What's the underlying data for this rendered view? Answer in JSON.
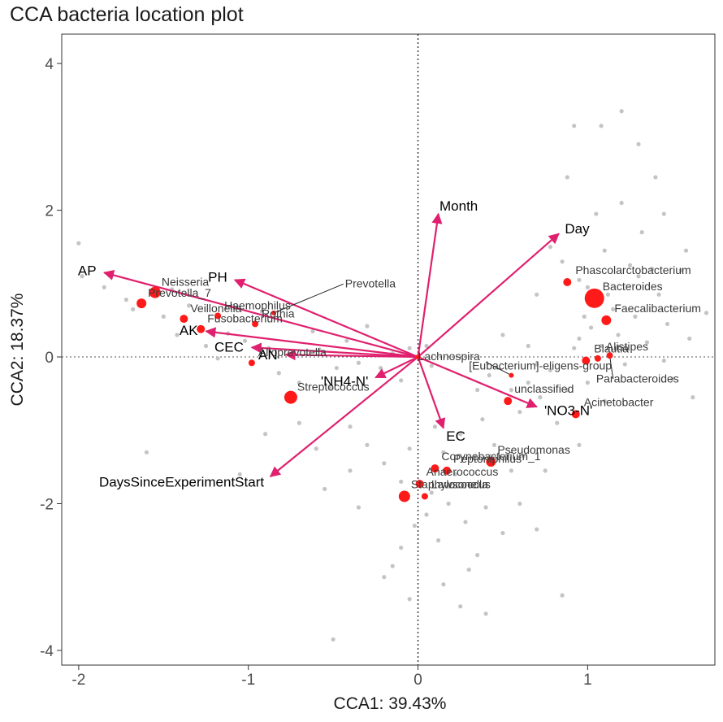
{
  "title": "CCA bacteria location plot",
  "chart_data": {
    "type": "scatter",
    "title": "CCA bacteria location plot",
    "xlabel": "CCA1: 39.43%",
    "ylabel": "CCA2: 18.37%",
    "xlim": [
      -2.1,
      1.75
    ],
    "ylim": [
      -4.2,
      4.4
    ],
    "x_ticks": [
      -2,
      -1,
      0,
      1
    ],
    "y_ticks": [
      -4,
      -2,
      0,
      2,
      4
    ],
    "grid": false,
    "reference_lines": "dotted lines at x=0 and y=0",
    "colors": {
      "arrows": "#e0206e",
      "highlighted": "#ff1a1a",
      "background_points": "#c4c4c4",
      "leaders": "#222222"
    },
    "arrows": [
      {
        "label": "AP",
        "x": -1.85,
        "y": 1.15
      },
      {
        "label": "PH",
        "x": -1.08,
        "y": 1.05
      },
      {
        "label": "AK",
        "x": -1.25,
        "y": 0.35
      },
      {
        "label": "CEC",
        "x": -0.98,
        "y": 0.13
      },
      {
        "label": "AN",
        "x": -0.78,
        "y": 0.03
      },
      {
        "label": "'NH4-N'",
        "x": -0.25,
        "y": -0.28
      },
      {
        "label": "DaysSinceExperimentStart",
        "x": -0.87,
        "y": -1.63
      },
      {
        "label": "Month",
        "x": 0.12,
        "y": 1.95
      },
      {
        "label": "Day",
        "x": 0.83,
        "y": 1.68
      },
      {
        "label": "EC",
        "x": 0.15,
        "y": -0.97
      },
      {
        "label": "'NO3-N'",
        "x": 0.7,
        "y": -0.68
      }
    ],
    "taxa": [
      {
        "label": "Neisseria",
        "x": -1.55,
        "y": 0.88,
        "size": 7
      },
      {
        "label": "Prevotella_7",
        "x": -1.63,
        "y": 0.73,
        "size": 6
      },
      {
        "label": "Veillonella",
        "x": -1.38,
        "y": 0.52,
        "size": 5
      },
      {
        "label": "Haemophilus",
        "x": -1.18,
        "y": 0.56,
        "size": 4
      },
      {
        "label": "Prevotella",
        "x": -0.85,
        "y": 0.6,
        "size": 3
      },
      {
        "label": "Rothia",
        "x": -0.96,
        "y": 0.45,
        "size": 4
      },
      {
        "label": "Fusobacterium",
        "x": -1.28,
        "y": 0.38,
        "size": 5
      },
      {
        "label": "Alloprevotella",
        "x": -0.98,
        "y": -0.08,
        "size": 4
      },
      {
        "label": "Streptococcus",
        "x": -0.75,
        "y": -0.55,
        "size": 8
      },
      {
        "label": "Phascolarctobacterium",
        "x": 0.88,
        "y": 1.02,
        "size": 5
      },
      {
        "label": "Bacteroides",
        "x": 1.04,
        "y": 0.8,
        "size": 12
      },
      {
        "label": "Faecalibacterium",
        "x": 1.11,
        "y": 0.5,
        "size": 6
      },
      {
        "label": "Lachnospira",
        "x": 0.0,
        "y": 0.0,
        "size": 3
      },
      {
        "label": "Blautia",
        "x": 0.99,
        "y": -0.05,
        "size": 5
      },
      {
        "label": "Alistipes",
        "x": 1.06,
        "y": -0.02,
        "size": 4
      },
      {
        "label": "[Eubacterium]-eligens-group",
        "x": 0.55,
        "y": -0.25,
        "size": 3
      },
      {
        "label": "Parabacteroides",
        "x": 1.13,
        "y": 0.02,
        "size": 4
      },
      {
        "label": "unclassified",
        "x": 0.53,
        "y": -0.6,
        "size": 5
      },
      {
        "label": "Acinetobacter",
        "x": 0.93,
        "y": -0.78,
        "size": 5
      },
      {
        "label": "Pseudomonas",
        "x": 0.43,
        "y": -1.43,
        "size": 6
      },
      {
        "label": "Corynebacterium_1",
        "x": 0.1,
        "y": -1.52,
        "size": 5
      },
      {
        "label": "Peptoniphilus",
        "x": 0.17,
        "y": -1.55,
        "size": 5
      },
      {
        "label": "Anaerococcus",
        "x": 0.01,
        "y": -1.73,
        "size": 5
      },
      {
        "label": "Staphylococcus",
        "x": -0.08,
        "y": -1.9,
        "size": 7
      },
      {
        "label": "Lawsonella",
        "x": 0.04,
        "y": -1.9,
        "size": 4
      }
    ],
    "background_points": [
      [
        -2.0,
        1.55
      ],
      [
        -1.98,
        1.1
      ],
      [
        -1.85,
        0.95
      ],
      [
        -1.72,
        0.78
      ],
      [
        -1.68,
        0.65
      ],
      [
        -1.45,
        0.92
      ],
      [
        -1.5,
        0.55
      ],
      [
        -1.42,
        0.3
      ],
      [
        -1.35,
        0.7
      ],
      [
        -1.25,
        0.15
      ],
      [
        -1.18,
        -0.02
      ],
      [
        -1.12,
        0.32
      ],
      [
        -1.02,
        0.22
      ],
      [
        -0.92,
        0.62
      ],
      [
        -0.88,
        0.12
      ],
      [
        -0.82,
        -0.22
      ],
      [
        -0.7,
        -0.35
      ],
      [
        -0.62,
        0.35
      ],
      [
        -0.58,
        0.1
      ],
      [
        -0.52,
        -0.42
      ],
      [
        -0.48,
        -0.15
      ],
      [
        -0.42,
        0.22
      ],
      [
        -0.35,
        -0.08
      ],
      [
        -0.3,
        0.42
      ],
      [
        -0.22,
        -0.15
      ],
      [
        -0.15,
        0.05
      ],
      [
        -0.1,
        -0.32
      ],
      [
        -0.05,
        0.12
      ],
      [
        0.05,
        0.15
      ],
      [
        0.08,
        -0.12
      ],
      [
        -1.6,
        -1.3
      ],
      [
        -1.05,
        -1.6
      ],
      [
        -0.9,
        -1.05
      ],
      [
        -0.7,
        -0.9
      ],
      [
        -0.6,
        -1.25
      ],
      [
        -0.55,
        -1.8
      ],
      [
        -0.4,
        -1.55
      ],
      [
        -0.4,
        -0.95
      ],
      [
        -0.3,
        -1.2
      ],
      [
        -0.35,
        -2.05
      ],
      [
        -0.2,
        -1.45
      ],
      [
        -0.1,
        -1.7
      ],
      [
        -0.1,
        -2.6
      ],
      [
        -0.05,
        -1.25
      ],
      [
        -0.02,
        -2.3
      ],
      [
        0.05,
        -2.15
      ],
      [
        0.08,
        -1.85
      ],
      [
        0.12,
        -2.5
      ],
      [
        0.15,
        -1.3
      ],
      [
        0.18,
        -2.0
      ],
      [
        0.22,
        -1.6
      ],
      [
        0.28,
        -2.25
      ],
      [
        0.32,
        -1.75
      ],
      [
        0.35,
        -2.7
      ],
      [
        0.4,
        -2.05
      ],
      [
        0.45,
        -1.2
      ],
      [
        0.5,
        -2.4
      ],
      [
        0.55,
        -1.55
      ],
      [
        0.6,
        -2.0
      ],
      [
        0.62,
        -1.35
      ],
      [
        0.3,
        -2.9
      ],
      [
        0.15,
        -3.1
      ],
      [
        -0.05,
        -3.3
      ],
      [
        0.25,
        -3.4
      ],
      [
        -0.5,
        -3.85
      ],
      [
        -0.2,
        -3.0
      ],
      [
        0.4,
        -3.5
      ],
      [
        0.7,
        -2.35
      ],
      [
        0.75,
        -1.55
      ],
      [
        0.85,
        -3.25
      ],
      [
        -0.15,
        -2.85
      ],
      [
        0.1,
        -0.95
      ],
      [
        0.25,
        -1.05
      ],
      [
        0.35,
        -0.45
      ],
      [
        0.38,
        -0.85
      ],
      [
        0.42,
        -0.25
      ],
      [
        0.55,
        -0.45
      ],
      [
        0.6,
        -0.75
      ],
      [
        0.65,
        -0.35
      ],
      [
        0.72,
        -0.55
      ],
      [
        0.78,
        -0.18
      ],
      [
        0.82,
        -0.9
      ],
      [
        0.88,
        -0.45
      ],
      [
        0.92,
        0.12
      ],
      [
        0.95,
        0.25
      ],
      [
        0.98,
        0.55
      ],
      [
        1.0,
        0.95
      ],
      [
        1.02,
        0.4
      ],
      [
        1.08,
        0.15
      ],
      [
        1.12,
        0.85
      ],
      [
        1.15,
        0.65
      ],
      [
        1.18,
        0.3
      ],
      [
        1.22,
        -0.1
      ],
      [
        1.28,
        0.55
      ],
      [
        1.3,
        1.1
      ],
      [
        1.35,
        0.2
      ],
      [
        1.42,
        0.85
      ],
      [
        1.5,
        -0.3
      ],
      [
        1.58,
        1.45
      ],
      [
        1.62,
        -0.55
      ],
      [
        1.7,
        0.6
      ],
      [
        1.55,
        1.18
      ],
      [
        1.45,
        -0.05
      ],
      [
        1.25,
        1.25
      ],
      [
        0.78,
        1.5
      ],
      [
        0.85,
        1.3
      ],
      [
        0.95,
        1.05
      ],
      [
        1.05,
        1.95
      ],
      [
        1.1,
        1.45
      ],
      [
        1.2,
        2.1
      ],
      [
        1.32,
        1.7
      ],
      [
        1.4,
        2.45
      ],
      [
        0.88,
        2.45
      ],
      [
        0.92,
        3.15
      ],
      [
        1.08,
        3.15
      ],
      [
        1.2,
        3.35
      ],
      [
        1.3,
        2.9
      ],
      [
        1.47,
        0.45
      ],
      [
        1.6,
        0.25
      ],
      [
        1.45,
        1.95
      ],
      [
        1.38,
        1.2
      ],
      [
        0.7,
        0.85
      ],
      [
        0.65,
        0.15
      ],
      [
        0.7,
        -0.1
      ],
      [
        1.0,
        -0.35
      ],
      [
        1.1,
        -0.6
      ],
      [
        0.95,
        -1.2
      ],
      [
        0.5,
        0.3
      ]
    ]
  }
}
